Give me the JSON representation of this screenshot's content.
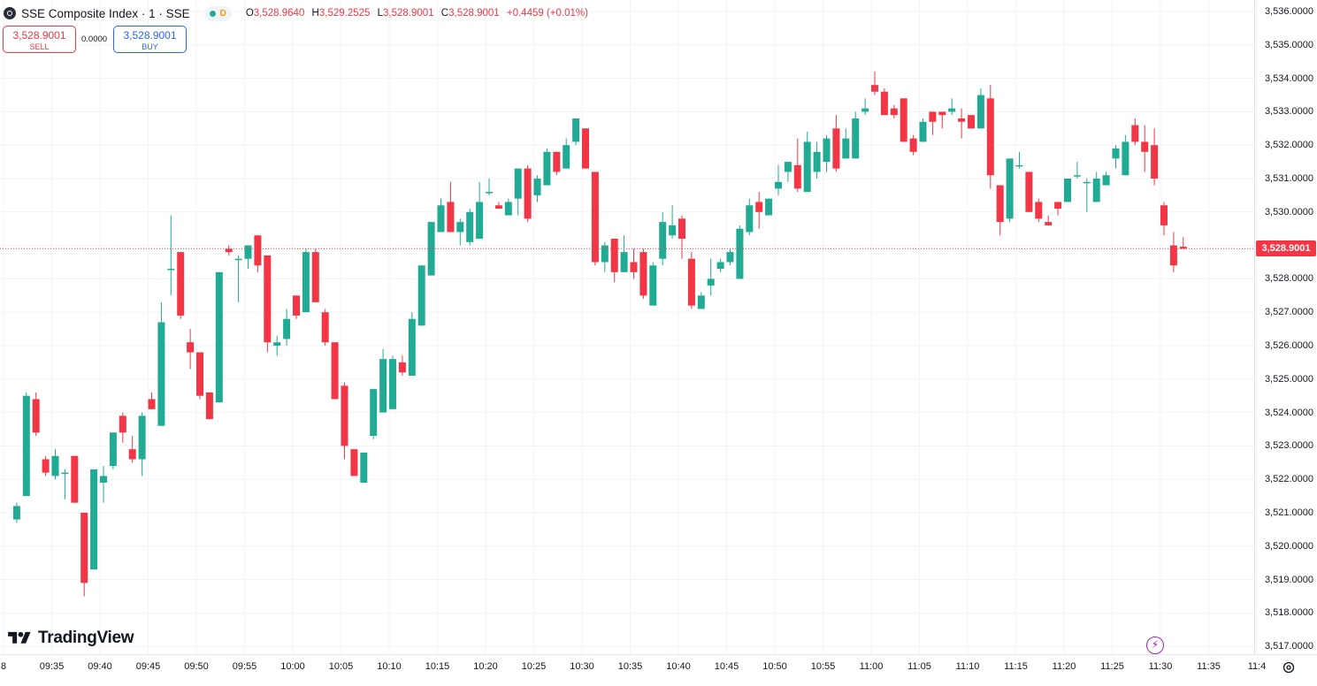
{
  "header": {
    "symbol_title": "SSE Composite Index · 1 · SSE",
    "delay_badge": "D",
    "ohlc": [
      {
        "key": "O",
        "value": "3,528.9640"
      },
      {
        "key": "H",
        "value": "3,529.2525"
      },
      {
        "key": "L",
        "value": "3,528.9001"
      },
      {
        "key": "C",
        "value": "3,528.9001"
      }
    ],
    "change": "+0.4459 (+0.01%)"
  },
  "trade": {
    "sell_price": "3,528.9001",
    "sell_label": "SELL",
    "spread": "0.0000",
    "buy_price": "3,528.9001",
    "buy_label": "BUY"
  },
  "branding": {
    "logo_text": "TradingView"
  },
  "icons": [
    "symbol-logo-icon",
    "market-status-icon",
    "tradingview-logo-icon",
    "lightning-icon",
    "settings-gear-icon"
  ],
  "colors": {
    "up": "#22ab94",
    "down": "#f23645",
    "grid": "#f0f3fa",
    "price_line": "#f23645"
  },
  "chart_data": {
    "type": "candlestick",
    "title": "",
    "xlabel": "",
    "ylabel": "",
    "interval_minutes": 1,
    "ylim": [
      3516.6,
      3536.2
    ],
    "grid": true,
    "last_price": 3528.9001,
    "last_price_label": "3,528.9001",
    "x_ticks": [
      "8",
      "09:35",
      "09:40",
      "09:45",
      "09:50",
      "09:55",
      "10:00",
      "10:05",
      "10:10",
      "10:15",
      "10:20",
      "10:25",
      "10:30",
      "10:35",
      "10:40",
      "10:45",
      "10:50",
      "10:55",
      "11:00",
      "11:05",
      "11:10",
      "11:15",
      "11:20",
      "11:25",
      "11:30",
      "11:35",
      "11:4"
    ],
    "y_ticks": [
      "3,536.0000",
      "3,535.0000",
      "3,534.0000",
      "3,533.0000",
      "3,532.0000",
      "3,531.0000",
      "3,530.0000",
      "3,529.0000",
      "3,528.0000",
      "3,527.0000",
      "3,526.0000",
      "3,525.0000",
      "3,524.0000",
      "3,523.0000",
      "3,522.0000",
      "3,521.0000",
      "3,520.0000",
      "3,519.0000",
      "3,518.0000",
      "3,517.0000"
    ],
    "y_tick_values": [
      3536,
      3535,
      3534,
      3533,
      3532,
      3531,
      3530,
      3529,
      3528,
      3527,
      3526,
      3525,
      3524,
      3523,
      3522,
      3521,
      3520,
      3519,
      3518,
      3517
    ],
    "candles": [
      {
        "t": "09:31",
        "o": 3520.8,
        "h": 3521.3,
        "l": 3520.7,
        "c": 3521.2
      },
      {
        "t": "09:32",
        "o": 3521.5,
        "h": 3524.6,
        "l": 3521.5,
        "c": 3524.5
      },
      {
        "t": "09:33",
        "o": 3524.4,
        "h": 3524.6,
        "l": 3523.3,
        "c": 3523.4
      },
      {
        "t": "09:34",
        "o": 3522.6,
        "h": 3522.7,
        "l": 3522.1,
        "c": 3522.2
      },
      {
        "t": "09:35",
        "o": 3522.1,
        "h": 3522.9,
        "l": 3522.0,
        "c": 3522.7
      },
      {
        "t": "09:36",
        "o": 3522.2,
        "h": 3522.3,
        "l": 3521.4,
        "c": 3522.2
      },
      {
        "t": "09:37",
        "o": 3522.7,
        "h": 3522.7,
        "l": 3521.3,
        "c": 3521.3
      },
      {
        "t": "09:38",
        "o": 3521.0,
        "h": 3521.0,
        "l": 3518.5,
        "c": 3518.9
      },
      {
        "t": "09:39",
        "o": 3519.3,
        "h": 3522.3,
        "l": 3519.3,
        "c": 3522.3
      },
      {
        "t": "09:40",
        "o": 3521.9,
        "h": 3522.4,
        "l": 3521.3,
        "c": 3522.1
      },
      {
        "t": "09:41",
        "o": 3522.4,
        "h": 3523.4,
        "l": 3522.3,
        "c": 3523.4
      },
      {
        "t": "09:42",
        "o": 3523.9,
        "h": 3524.0,
        "l": 3523.1,
        "c": 3523.4
      },
      {
        "t": "09:43",
        "o": 3522.9,
        "h": 3523.3,
        "l": 3522.5,
        "c": 3522.6
      },
      {
        "t": "09:44",
        "o": 3522.6,
        "h": 3524.0,
        "l": 3522.1,
        "c": 3523.9
      },
      {
        "t": "09:45",
        "o": 3524.4,
        "h": 3524.6,
        "l": 3524.1,
        "c": 3524.1
      },
      {
        "t": "09:46",
        "o": 3523.6,
        "h": 3527.3,
        "l": 3523.6,
        "c": 3526.7
      },
      {
        "t": "09:47",
        "o": 3528.3,
        "h": 3529.9,
        "l": 3527.5,
        "c": 3528.3
      },
      {
        "t": "09:48",
        "o": 3528.8,
        "h": 3528.8,
        "l": 3526.8,
        "c": 3526.9
      },
      {
        "t": "09:49",
        "o": 3526.1,
        "h": 3526.5,
        "l": 3525.3,
        "c": 3525.8
      },
      {
        "t": "09:50",
        "o": 3525.8,
        "h": 3525.8,
        "l": 3524.4,
        "c": 3524.5
      },
      {
        "t": "09:51",
        "o": 3524.6,
        "h": 3524.6,
        "l": 3523.8,
        "c": 3523.8
      },
      {
        "t": "09:52",
        "o": 3524.3,
        "h": 3528.2,
        "l": 3524.3,
        "c": 3528.2
      },
      {
        "t": "09:53",
        "o": 3528.9,
        "h": 3529.0,
        "l": 3528.7,
        "c": 3528.8
      },
      {
        "t": "09:54",
        "o": 3528.6,
        "h": 3528.7,
        "l": 3527.3,
        "c": 3528.6
      },
      {
        "t": "09:55",
        "o": 3528.6,
        "h": 3529.0,
        "l": 3528.3,
        "c": 3529.0
      },
      {
        "t": "09:56",
        "o": 3529.3,
        "h": 3529.3,
        "l": 3528.2,
        "c": 3528.4
      },
      {
        "t": "09:57",
        "o": 3528.7,
        "h": 3528.7,
        "l": 3525.8,
        "c": 3526.1
      },
      {
        "t": "09:58",
        "o": 3526.0,
        "h": 3526.3,
        "l": 3525.7,
        "c": 3526.1
      },
      {
        "t": "09:59",
        "o": 3526.2,
        "h": 3527.1,
        "l": 3526.0,
        "c": 3526.8
      },
      {
        "t": "10:00",
        "o": 3527.5,
        "h": 3527.5,
        "l": 3526.8,
        "c": 3526.9
      },
      {
        "t": "10:01",
        "o": 3527.0,
        "h": 3528.9,
        "l": 3527.0,
        "c": 3528.8
      },
      {
        "t": "10:02",
        "o": 3528.8,
        "h": 3528.9,
        "l": 3527.3,
        "c": 3527.3
      },
      {
        "t": "10:03",
        "o": 3527.0,
        "h": 3527.1,
        "l": 3526.0,
        "c": 3526.1
      },
      {
        "t": "10:04",
        "o": 3526.1,
        "h": 3526.1,
        "l": 3524.4,
        "c": 3524.4
      },
      {
        "t": "10:05",
        "o": 3524.8,
        "h": 3524.9,
        "l": 3522.6,
        "c": 3523.0
      },
      {
        "t": "10:06",
        "o": 3522.9,
        "h": 3522.9,
        "l": 3522.1,
        "c": 3522.1
      },
      {
        "t": "10:07",
        "o": 3521.9,
        "h": 3522.8,
        "l": 3521.9,
        "c": 3522.8
      },
      {
        "t": "10:08",
        "o": 3523.3,
        "h": 3524.7,
        "l": 3523.2,
        "c": 3524.7
      },
      {
        "t": "10:09",
        "o": 3524.0,
        "h": 3525.9,
        "l": 3524.0,
        "c": 3525.6
      },
      {
        "t": "10:10",
        "o": 3524.1,
        "h": 3525.7,
        "l": 3524.1,
        "c": 3525.6
      },
      {
        "t": "10:11",
        "o": 3525.5,
        "h": 3525.7,
        "l": 3525.1,
        "c": 3525.2
      },
      {
        "t": "10:12",
        "o": 3525.1,
        "h": 3527.0,
        "l": 3525.1,
        "c": 3526.8
      },
      {
        "t": "10:13",
        "o": 3526.6,
        "h": 3528.4,
        "l": 3526.6,
        "c": 3528.4
      },
      {
        "t": "10:14",
        "o": 3528.1,
        "h": 3529.7,
        "l": 3528.1,
        "c": 3529.7
      },
      {
        "t": "10:15",
        "o": 3529.4,
        "h": 3530.4,
        "l": 3529.4,
        "c": 3530.2
      },
      {
        "t": "10:16",
        "o": 3530.3,
        "h": 3530.9,
        "l": 3529.4,
        "c": 3529.4
      },
      {
        "t": "10:17",
        "o": 3529.4,
        "h": 3529.8,
        "l": 3529.0,
        "c": 3529.7
      },
      {
        "t": "10:18",
        "o": 3529.1,
        "h": 3530.1,
        "l": 3529.0,
        "c": 3530.0
      },
      {
        "t": "10:19",
        "o": 3529.2,
        "h": 3530.9,
        "l": 3529.2,
        "c": 3530.3
      },
      {
        "t": "10:20",
        "o": 3530.6,
        "h": 3531.0,
        "l": 3530.5,
        "c": 3530.6
      },
      {
        "t": "10:21",
        "o": 3530.2,
        "h": 3530.3,
        "l": 3530.1,
        "c": 3530.1
      },
      {
        "t": "10:22",
        "o": 3529.9,
        "h": 3530.4,
        "l": 3529.9,
        "c": 3530.3
      },
      {
        "t": "10:23",
        "o": 3530.4,
        "h": 3531.3,
        "l": 3529.9,
        "c": 3531.3
      },
      {
        "t": "10:24",
        "o": 3531.3,
        "h": 3531.4,
        "l": 3529.7,
        "c": 3529.8
      },
      {
        "t": "10:25",
        "o": 3530.5,
        "h": 3531.1,
        "l": 3530.3,
        "c": 3531.0
      },
      {
        "t": "10:26",
        "o": 3530.8,
        "h": 3531.9,
        "l": 3530.8,
        "c": 3531.8
      },
      {
        "t": "10:27",
        "o": 3531.8,
        "h": 3531.8,
        "l": 3531.1,
        "c": 3531.2
      },
      {
        "t": "10:28",
        "o": 3531.3,
        "h": 3532.2,
        "l": 3531.3,
        "c": 3532.0
      },
      {
        "t": "10:29",
        "o": 3532.1,
        "h": 3532.8,
        "l": 3532.0,
        "c": 3532.8
      },
      {
        "t": "10:30",
        "o": 3532.5,
        "h": 3532.5,
        "l": 3531.3,
        "c": 3531.3
      },
      {
        "t": "10:31",
        "o": 3531.2,
        "h": 3531.2,
        "l": 3528.4,
        "c": 3528.5
      },
      {
        "t": "10:32",
        "o": 3528.5,
        "h": 3529.1,
        "l": 3528.2,
        "c": 3529.0
      },
      {
        "t": "10:33",
        "o": 3529.2,
        "h": 3529.2,
        "l": 3527.9,
        "c": 3528.2
      },
      {
        "t": "10:34",
        "o": 3528.2,
        "h": 3529.3,
        "l": 3528.2,
        "c": 3528.8
      },
      {
        "t": "10:35",
        "o": 3528.5,
        "h": 3528.9,
        "l": 3528.0,
        "c": 3528.2
      },
      {
        "t": "10:36",
        "o": 3528.8,
        "h": 3528.9,
        "l": 3527.4,
        "c": 3527.5
      },
      {
        "t": "10:37",
        "o": 3527.2,
        "h": 3528.5,
        "l": 3527.2,
        "c": 3528.4
      },
      {
        "t": "10:38",
        "o": 3528.6,
        "h": 3530.0,
        "l": 3528.4,
        "c": 3529.7
      },
      {
        "t": "10:39",
        "o": 3529.3,
        "h": 3530.2,
        "l": 3529.2,
        "c": 3529.6
      },
      {
        "t": "10:40",
        "o": 3529.8,
        "h": 3529.9,
        "l": 3528.6,
        "c": 3529.2
      },
      {
        "t": "10:41",
        "o": 3528.6,
        "h": 3528.8,
        "l": 3527.1,
        "c": 3527.2
      },
      {
        "t": "10:42",
        "o": 3527.1,
        "h": 3527.6,
        "l": 3527.1,
        "c": 3527.5
      },
      {
        "t": "10:43",
        "o": 3527.8,
        "h": 3528.6,
        "l": 3527.5,
        "c": 3528.0
      },
      {
        "t": "10:44",
        "o": 3528.3,
        "h": 3528.6,
        "l": 3528.2,
        "c": 3528.5
      },
      {
        "t": "10:45",
        "o": 3528.5,
        "h": 3528.9,
        "l": 3528.4,
        "c": 3528.8
      },
      {
        "t": "10:46",
        "o": 3528.0,
        "h": 3529.6,
        "l": 3528.0,
        "c": 3529.5
      },
      {
        "t": "10:47",
        "o": 3529.4,
        "h": 3530.4,
        "l": 3529.3,
        "c": 3530.2
      },
      {
        "t": "10:48",
        "o": 3530.3,
        "h": 3530.6,
        "l": 3529.5,
        "c": 3530.0
      },
      {
        "t": "10:49",
        "o": 3529.9,
        "h": 3530.4,
        "l": 3529.9,
        "c": 3530.4
      },
      {
        "t": "10:50",
        "o": 3530.7,
        "h": 3531.4,
        "l": 3530.5,
        "c": 3530.9
      },
      {
        "t": "10:51",
        "o": 3531.2,
        "h": 3531.5,
        "l": 3530.9,
        "c": 3531.5
      },
      {
        "t": "10:52",
        "o": 3531.4,
        "h": 3532.2,
        "l": 3530.6,
        "c": 3530.7
      },
      {
        "t": "10:53",
        "o": 3530.6,
        "h": 3532.4,
        "l": 3530.6,
        "c": 3532.1
      },
      {
        "t": "10:54",
        "o": 3531.2,
        "h": 3532.1,
        "l": 3531.0,
        "c": 3531.8
      },
      {
        "t": "10:55",
        "o": 3531.5,
        "h": 3532.3,
        "l": 3531.2,
        "c": 3532.2
      },
      {
        "t": "10:56",
        "o": 3532.5,
        "h": 3532.9,
        "l": 3531.2,
        "c": 3531.3
      },
      {
        "t": "10:57",
        "o": 3531.6,
        "h": 3532.5,
        "l": 3531.6,
        "c": 3532.2
      },
      {
        "t": "10:58",
        "o": 3531.6,
        "h": 3533.0,
        "l": 3531.6,
        "c": 3532.8
      },
      {
        "t": "10:59",
        "o": 3533.0,
        "h": 3533.4,
        "l": 3532.9,
        "c": 3533.1
      },
      {
        "t": "11:00",
        "o": 3533.8,
        "h": 3534.2,
        "l": 3533.5,
        "c": 3533.6
      },
      {
        "t": "11:01",
        "o": 3533.6,
        "h": 3533.7,
        "l": 3532.9,
        "c": 3532.9
      },
      {
        "t": "11:02",
        "o": 3533.1,
        "h": 3533.2,
        "l": 3532.8,
        "c": 3532.9
      },
      {
        "t": "11:03",
        "o": 3533.4,
        "h": 3533.4,
        "l": 3532.1,
        "c": 3532.1
      },
      {
        "t": "11:04",
        "o": 3532.2,
        "h": 3532.3,
        "l": 3531.7,
        "c": 3531.8
      },
      {
        "t": "11:05",
        "o": 3532.1,
        "h": 3532.8,
        "l": 3532.1,
        "c": 3532.7
      },
      {
        "t": "11:06",
        "o": 3533.0,
        "h": 3533.0,
        "l": 3532.3,
        "c": 3532.7
      },
      {
        "t": "11:07",
        "o": 3533.0,
        "h": 3533.0,
        "l": 3532.5,
        "c": 3532.9
      },
      {
        "t": "11:08",
        "o": 3533.0,
        "h": 3533.4,
        "l": 3532.9,
        "c": 3533.1
      },
      {
        "t": "11:09",
        "o": 3532.8,
        "h": 3533.1,
        "l": 3532.2,
        "c": 3532.7
      },
      {
        "t": "11:10",
        "o": 3532.9,
        "h": 3532.9,
        "l": 3532.5,
        "c": 3532.5
      },
      {
        "t": "11:11",
        "o": 3532.5,
        "h": 3533.7,
        "l": 3532.5,
        "c": 3533.5
      },
      {
        "t": "11:12",
        "o": 3533.4,
        "h": 3533.8,
        "l": 3530.7,
        "c": 3531.1
      },
      {
        "t": "11:13",
        "o": 3530.8,
        "h": 3530.8,
        "l": 3529.3,
        "c": 3529.7
      },
      {
        "t": "11:14",
        "o": 3529.8,
        "h": 3531.6,
        "l": 3529.7,
        "c": 3531.6
      },
      {
        "t": "11:15",
        "o": 3531.4,
        "h": 3531.8,
        "l": 3531.3,
        "c": 3531.4
      },
      {
        "t": "11:16",
        "o": 3531.2,
        "h": 3531.2,
        "l": 3530.0,
        "c": 3530.0
      },
      {
        "t": "11:17",
        "o": 3530.3,
        "h": 3530.4,
        "l": 3529.7,
        "c": 3529.8
      },
      {
        "t": "11:18",
        "o": 3529.7,
        "h": 3529.9,
        "l": 3529.6,
        "c": 3529.6
      },
      {
        "t": "11:19",
        "o": 3530.3,
        "h": 3530.3,
        "l": 3529.9,
        "c": 3530.1
      },
      {
        "t": "11:20",
        "o": 3530.3,
        "h": 3531.0,
        "l": 3530.3,
        "c": 3531.0
      },
      {
        "t": "11:21",
        "o": 3531.1,
        "h": 3531.5,
        "l": 3531.0,
        "c": 3531.1
      },
      {
        "t": "11:22",
        "o": 3530.9,
        "h": 3531.0,
        "l": 3530.0,
        "c": 3530.9
      },
      {
        "t": "11:23",
        "o": 3530.3,
        "h": 3531.2,
        "l": 3530.3,
        "c": 3531.0
      },
      {
        "t": "11:24",
        "o": 3530.8,
        "h": 3531.2,
        "l": 3530.8,
        "c": 3531.1
      },
      {
        "t": "11:25",
        "o": 3531.6,
        "h": 3532.0,
        "l": 3531.3,
        "c": 3531.9
      },
      {
        "t": "11:26",
        "o": 3531.1,
        "h": 3532.3,
        "l": 3531.1,
        "c": 3532.1
      },
      {
        "t": "11:27",
        "o": 3532.6,
        "h": 3532.8,
        "l": 3532.0,
        "c": 3532.1
      },
      {
        "t": "11:28",
        "o": 3532.1,
        "h": 3532.6,
        "l": 3531.2,
        "c": 3531.8
      },
      {
        "t": "11:29",
        "o": 3532.0,
        "h": 3532.5,
        "l": 3530.8,
        "c": 3531.0
      },
      {
        "t": "11:30",
        "o": 3530.2,
        "h": 3530.3,
        "l": 3529.3,
        "c": 3529.6
      },
      {
        "t": "11:31",
        "o": 3529.0,
        "h": 3529.4,
        "l": 3528.2,
        "c": 3528.4
      },
      {
        "t": "11:32",
        "o": 3528.96,
        "h": 3529.25,
        "l": 3528.9,
        "c": 3528.9
      }
    ]
  }
}
